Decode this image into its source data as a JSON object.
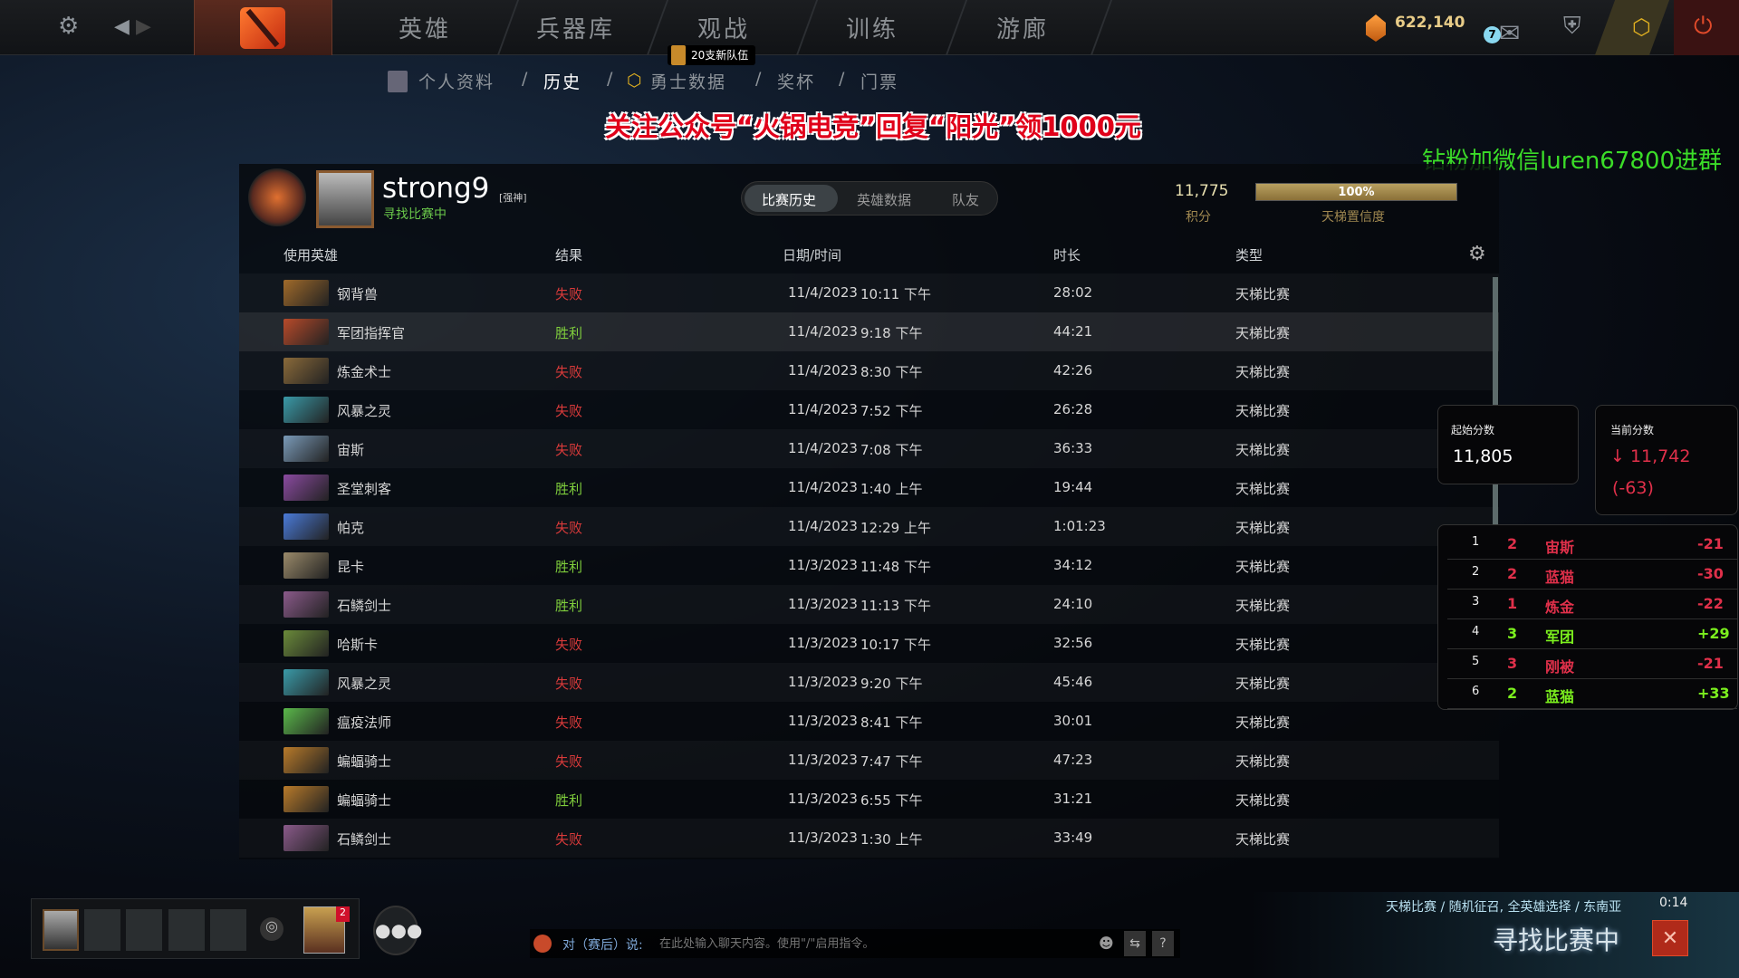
{
  "topbar": {
    "nav": [
      "英雄",
      "兵器库",
      "观战",
      "训练",
      "游廊"
    ],
    "badge": "20支新队伍",
    "shards": "622,140",
    "mail_count": "7"
  },
  "subnav": {
    "items": [
      "个人资料",
      "历史",
      "勇士数据",
      "奖杯",
      "门票"
    ],
    "separator": "/"
  },
  "promo": "关注公众号“火锅电竞”回复“阳光”领1000元",
  "overlay_text": "钻粉加微信luren67800进群",
  "profile": {
    "name": "strong9",
    "tag": "[强神]",
    "status": "寻找比赛中",
    "tabs": [
      "比赛历史",
      "英雄数据",
      "队友"
    ],
    "score": "11,775",
    "score_label": "积分",
    "confidence": "100%",
    "confidence_value": 100,
    "confidence_label": "天梯置信度"
  },
  "table": {
    "headers": [
      "使用英雄",
      "结果",
      "日期/时间",
      "时长",
      "类型"
    ],
    "rows": [
      {
        "hero": "钢背兽",
        "result": "失败",
        "date": "11/4/2023",
        "time": "10:11 下午",
        "duration": "28:02",
        "type": "天梯比赛",
        "color": "#a06a2a"
      },
      {
        "hero": "军团指挥官",
        "result": "胜利",
        "date": "11/4/2023",
        "time": "9:18 下午",
        "duration": "44:21",
        "type": "天梯比赛",
        "color": "#b84a2a"
      },
      {
        "hero": "炼金术士",
        "result": "失败",
        "date": "11/4/2023",
        "time": "8:30 下午",
        "duration": "42:26",
        "type": "天梯比赛",
        "color": "#8a6a3a"
      },
      {
        "hero": "风暴之灵",
        "result": "失败",
        "date": "11/4/2023",
        "time": "7:52 下午",
        "duration": "26:28",
        "type": "天梯比赛",
        "color": "#3a9aa8"
      },
      {
        "hero": "宙斯",
        "result": "失败",
        "date": "11/4/2023",
        "time": "7:08 下午",
        "duration": "36:33",
        "type": "天梯比赛",
        "color": "#7a9ab8"
      },
      {
        "hero": "圣堂刺客",
        "result": "胜利",
        "date": "11/4/2023",
        "time": "1:40 上午",
        "duration": "19:44",
        "type": "天梯比赛",
        "color": "#8a4aa0"
      },
      {
        "hero": "帕克",
        "result": "失败",
        "date": "11/4/2023",
        "time": "12:29 上午",
        "duration": "1:01:23",
        "type": "天梯比赛",
        "color": "#4a7ad8"
      },
      {
        "hero": "昆卡",
        "result": "胜利",
        "date": "11/3/2023",
        "time": "11:48 下午",
        "duration": "34:12",
        "type": "天梯比赛",
        "color": "#9a8a6a"
      },
      {
        "hero": "石鳞剑士",
        "result": "胜利",
        "date": "11/3/2023",
        "time": "11:13 下午",
        "duration": "24:10",
        "type": "天梯比赛",
        "color": "#8a5a8a"
      },
      {
        "hero": "哈斯卡",
        "result": "失败",
        "date": "11/3/2023",
        "time": "10:17 下午",
        "duration": "32:56",
        "type": "天梯比赛",
        "color": "#6a8a3a"
      },
      {
        "hero": "风暴之灵",
        "result": "失败",
        "date": "11/3/2023",
        "time": "9:20 下午",
        "duration": "45:46",
        "type": "天梯比赛",
        "color": "#3a9aa8"
      },
      {
        "hero": "瘟疫法师",
        "result": "失败",
        "date": "11/3/2023",
        "time": "8:41 下午",
        "duration": "30:01",
        "type": "天梯比赛",
        "color": "#5ab84a"
      },
      {
        "hero": "蝙蝠骑士",
        "result": "失败",
        "date": "11/3/2023",
        "time": "7:47 下午",
        "duration": "47:23",
        "type": "天梯比赛",
        "color": "#b87a2a"
      },
      {
        "hero": "蝙蝠骑士",
        "result": "胜利",
        "date": "11/3/2023",
        "time": "6:55 下午",
        "duration": "31:21",
        "type": "天梯比赛",
        "color": "#b87a2a"
      },
      {
        "hero": "石鳞剑士",
        "result": "失败",
        "date": "11/3/2023",
        "time": "1:30 上午",
        "duration": "33:49",
        "type": "天梯比赛",
        "color": "#8a5a8a"
      }
    ]
  },
  "stats": {
    "start_label": "起始分数",
    "start": "11,805",
    "current_label": "当前分数",
    "current": "↓ 11,742",
    "delta": "(-63)",
    "list": [
      {
        "n": "1",
        "k": "2",
        "hero": "宙斯",
        "pts": "-21",
        "win": false
      },
      {
        "n": "2",
        "k": "2",
        "hero": "蓝猫",
        "pts": "-30",
        "win": false
      },
      {
        "n": "3",
        "k": "1",
        "hero": "炼金",
        "pts": "-22",
        "win": false
      },
      {
        "n": "4",
        "k": "3",
        "hero": "军团",
        "pts": "+29",
        "win": true
      },
      {
        "n": "5",
        "k": "3",
        "hero": "刚被",
        "pts": "-21",
        "win": false
      },
      {
        "n": "6",
        "k": "2",
        "hero": "蓝猫",
        "pts": "+33",
        "win": true
      }
    ]
  },
  "chat": {
    "prefix": "对（赛后）说:",
    "placeholder": "在此处输入聊天内容。使用\"/\"启用指令。"
  },
  "queue": {
    "mode": "天梯比赛 / 随机征召, 全英雄选择 / 东南亚",
    "timer": "0:14",
    "status": "寻找比赛中"
  },
  "party": {
    "notif": "2"
  }
}
